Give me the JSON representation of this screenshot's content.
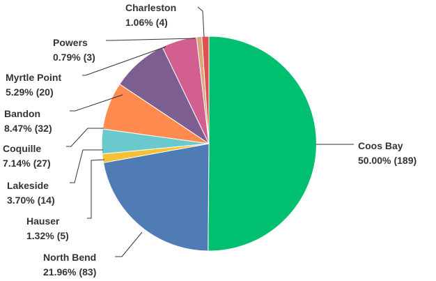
{
  "chart_data": {
    "type": "pie",
    "title": "",
    "slices": [
      {
        "name": "Coos Bay",
        "percent_label": "50.00%",
        "count_label": "(189)",
        "value": 189,
        "color": "#00BF6F"
      },
      {
        "name": "North Bend",
        "percent_label": "21.96%",
        "count_label": "(83)",
        "value": 83,
        "color": "#507CB6"
      },
      {
        "name": "Hauser",
        "percent_label": "1.32%",
        "count_label": "(5)",
        "value": 5,
        "color": "#F7C137"
      },
      {
        "name": "Lakeside",
        "percent_label": "3.70%",
        "count_label": "(14)",
        "value": 14,
        "color": "#6BC8CD"
      },
      {
        "name": "Coquille",
        "percent_label": "7.14%",
        "count_label": "(27)",
        "value": 27,
        "color": "#FF8B4F"
      },
      {
        "name": "Bandon",
        "percent_label": "8.47%",
        "count_label": "(32)",
        "value": 32,
        "color": "#7D5E90"
      },
      {
        "name": "Myrtle Point",
        "percent_label": "5.29%",
        "count_label": "(20)",
        "value": 20,
        "color": "#D25F90"
      },
      {
        "name": "Powers",
        "percent_label": "0.79%",
        "count_label": "(3)",
        "value": 3,
        "color": "#DBA87C"
      },
      {
        "name": "Charleston",
        "percent_label": "1.06%",
        "count_label": "(4)",
        "value": 4,
        "color": "#E05050"
      }
    ]
  }
}
